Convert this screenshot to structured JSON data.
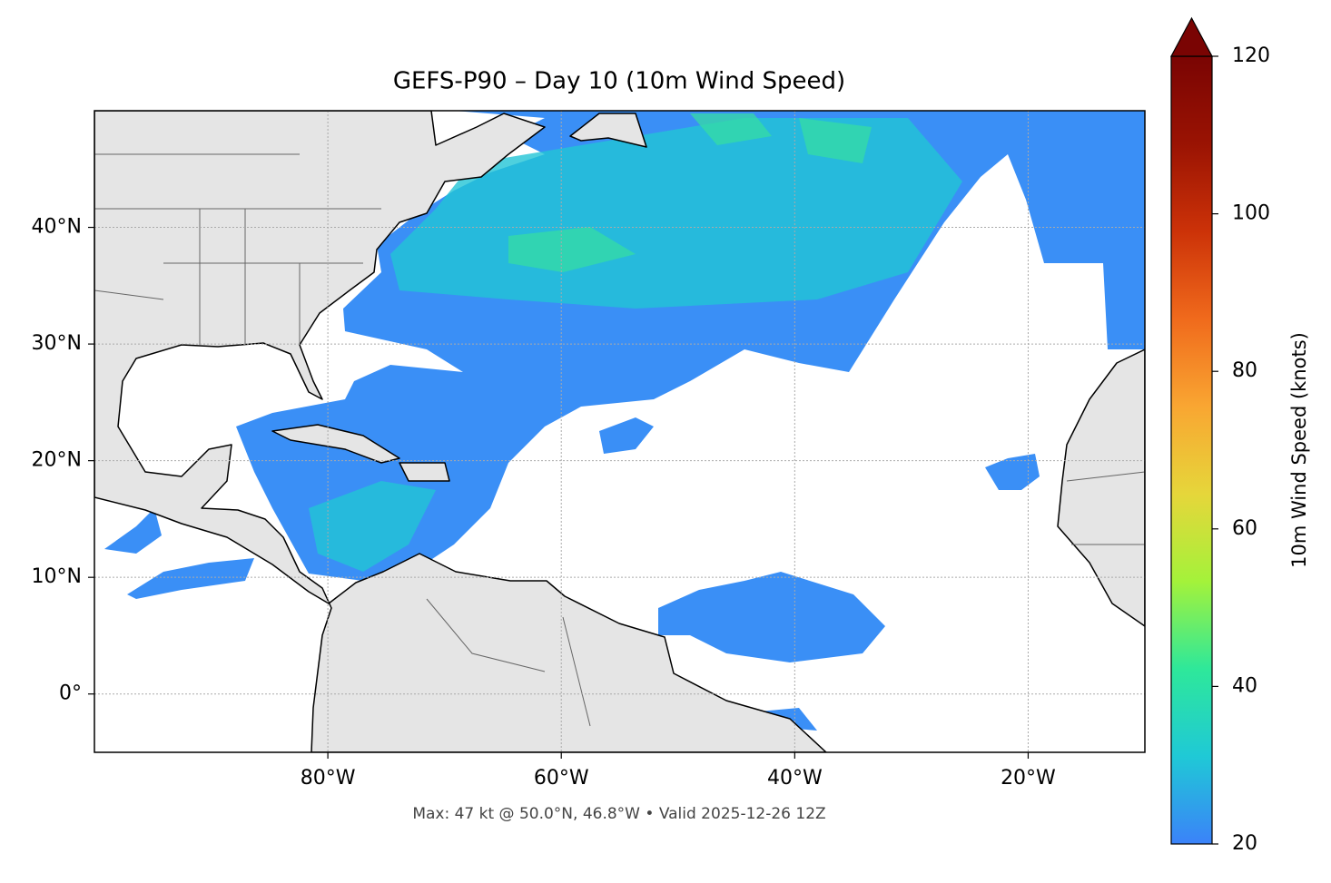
{
  "chart_data": {
    "type": "map",
    "title": "GEFS-P90 – Day 10 (10m Wind Speed)",
    "xlim": [
      -100,
      -10
    ],
    "ylim": [
      -5,
      50
    ],
    "xticks": [
      {
        "value": -80,
        "label": "80°W"
      },
      {
        "value": -60,
        "label": "60°W"
      },
      {
        "value": -40,
        "label": "40°W"
      },
      {
        "value": -20,
        "label": "20°W"
      }
    ],
    "yticks": [
      {
        "value": 0,
        "label": "0°"
      },
      {
        "value": 10,
        "label": "10°N"
      },
      {
        "value": 20,
        "label": "20°N"
      },
      {
        "value": 30,
        "label": "30°N"
      },
      {
        "value": 40,
        "label": "40°N"
      }
    ],
    "grid": true,
    "annotation": "Max: 47 kt @ 50.0°N, 46.8°W • Valid 2025-12-26 12Z",
    "colorbar": {
      "label": "10m Wind Speed (knots)",
      "lim": [
        20,
        120
      ],
      "ticks": [
        20,
        40,
        60,
        80,
        100,
        120
      ],
      "extend": "max",
      "colors": [
        "#3b82f9",
        "#1fc9d6",
        "#2ee89a",
        "#a4f23a",
        "#e6d63a",
        "#f9a632",
        "#f06a1c",
        "#cc3208",
        "#9a1303",
        "#7a0403"
      ]
    }
  }
}
